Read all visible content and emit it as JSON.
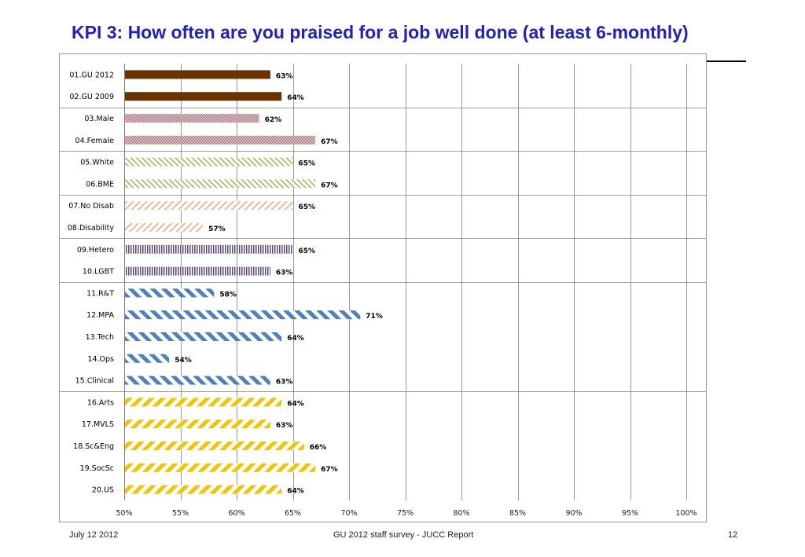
{
  "slide": {
    "title": "KPI 3: How often are you praised for a job well done (at least 6-monthly)",
    "footer_date": "July 12 2012",
    "footer_center": "GU 2012 staff survey -  JUCC Report",
    "page_number": "12"
  },
  "chart_data": {
    "type": "bar",
    "orientation": "horizontal",
    "title": "",
    "xlabel": "",
    "ylabel": "",
    "xlim": [
      50,
      100
    ],
    "x_ticks": [
      50,
      55,
      60,
      65,
      70,
      75,
      80,
      85,
      90,
      95,
      100
    ],
    "x_tick_suffix": "%",
    "value_suffix": "%",
    "grid": true,
    "group_separators_after": [
      2,
      4,
      6,
      8,
      10,
      15
    ],
    "colors": {
      "gu": "#6b3300",
      "gender": "#e8404a",
      "ethnicity": "#9bbb59",
      "disability": "#f0a06a",
      "orientation": "#5b4a8a",
      "staff": "#4f81bd",
      "college": "#f2c500"
    },
    "bars": [
      {
        "label": "01.GU 2012",
        "value": 63,
        "group": "gu"
      },
      {
        "label": "02.GU 2009",
        "value": 64,
        "group": "gu"
      },
      {
        "label": "03.Male",
        "value": 62,
        "group": "gender"
      },
      {
        "label": "04.Female",
        "value": 67,
        "group": "gender"
      },
      {
        "label": "05.White",
        "value": 65,
        "group": "ethnicity"
      },
      {
        "label": "06.BME",
        "value": 67,
        "group": "ethnicity"
      },
      {
        "label": "07.No Disab",
        "value": 65,
        "group": "disability"
      },
      {
        "label": "08.Disability",
        "value": 57,
        "group": "disability"
      },
      {
        "label": "09.Hetero",
        "value": 65,
        "group": "orientation"
      },
      {
        "label": "10.LGBT",
        "value": 63,
        "group": "orientation"
      },
      {
        "label": "11.R&T",
        "value": 58,
        "group": "staff"
      },
      {
        "label": "12.MPA",
        "value": 71,
        "group": "staff"
      },
      {
        "label": "13.Tech",
        "value": 64,
        "group": "staff"
      },
      {
        "label": "14.Ops",
        "value": 54,
        "group": "staff"
      },
      {
        "label": "15.Clinical",
        "value": 63,
        "group": "staff"
      },
      {
        "label": "16.Arts",
        "value": 64,
        "group": "college"
      },
      {
        "label": "17.MVLS",
        "value": 63,
        "group": "college"
      },
      {
        "label": "18.Sc&Eng",
        "value": 66,
        "group": "college"
      },
      {
        "label": "19.SocSc",
        "value": 67,
        "group": "college"
      },
      {
        "label": "20.US",
        "value": 64,
        "group": "college"
      }
    ]
  }
}
